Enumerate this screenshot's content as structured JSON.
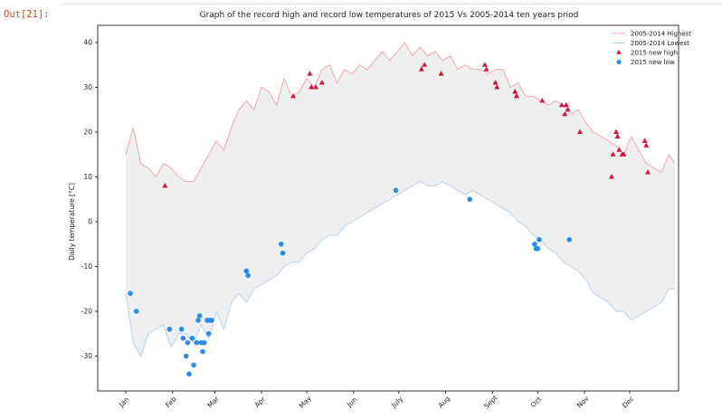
{
  "notebook": {
    "prompt": "Out[21]:"
  },
  "chart_data": {
    "type": "line",
    "title": "Graph of the record high and record low temperatures of 2015 Vs  2005-2014 ten years priod",
    "xlabel": "",
    "ylabel": "Daily temperature [°C]",
    "x_range": [
      1,
      365
    ],
    "ylim": [
      -38,
      44
    ],
    "yticks": [
      -30,
      -20,
      -10,
      0,
      10,
      20,
      30,
      40
    ],
    "month_ticks": [
      {
        "label": "Jan",
        "day": 1
      },
      {
        "label": "Feb",
        "day": 32
      },
      {
        "label": "Mar",
        "day": 60
      },
      {
        "label": "Apr",
        "day": 91
      },
      {
        "label": "May",
        "day": 121
      },
      {
        "label": "Jun",
        "day": 152
      },
      {
        "label": "July",
        "day": 182
      },
      {
        "label": "Aug",
        "day": 213
      },
      {
        "label": "Sept",
        "day": 244
      },
      {
        "label": "Oct",
        "day": 274
      },
      {
        "label": "Nov",
        "day": 305
      },
      {
        "label": "Dec",
        "day": 335
      }
    ],
    "grid": false,
    "legend_position": "top-right",
    "colors": {
      "high": "#f4a6a6",
      "low": "#b4d3f0",
      "fill": "#efefef",
      "new_high": "#d0143c",
      "new_low": "#2c8be6"
    },
    "series": [
      {
        "name": "2005-2014 Highest",
        "kind": "line",
        "x": [
          1,
          6,
          11,
          16,
          21,
          26,
          31,
          36,
          41,
          46,
          51,
          56,
          61,
          66,
          71,
          76,
          81,
          86,
          91,
          96,
          101,
          106,
          111,
          116,
          121,
          126,
          131,
          136,
          141,
          146,
          151,
          156,
          161,
          166,
          171,
          176,
          181,
          186,
          191,
          196,
          201,
          206,
          211,
          216,
          221,
          226,
          231,
          236,
          241,
          246,
          251,
          256,
          261,
          266,
          271,
          276,
          281,
          286,
          291,
          296,
          301,
          306,
          311,
          316,
          321,
          326,
          331,
          336,
          341,
          346,
          351,
          356,
          361,
          365
        ],
        "y": [
          15,
          21,
          13,
          12,
          10,
          13,
          12,
          10,
          9,
          9,
          12,
          15,
          18,
          16,
          21,
          25,
          27,
          25,
          30,
          29,
          26,
          32,
          28,
          29,
          32,
          30,
          34,
          35,
          31,
          34,
          33,
          35,
          34,
          36,
          38,
          36,
          38,
          40,
          37,
          39,
          37,
          38,
          36,
          37,
          34,
          35,
          34,
          34,
          33,
          34,
          34,
          30,
          31,
          28,
          28,
          27,
          26,
          27,
          26,
          24,
          25,
          22,
          20,
          19,
          18,
          17,
          15,
          19,
          16,
          13,
          12,
          11,
          15,
          13
        ]
      },
      {
        "name": "2005-2014 Lowest",
        "kind": "line",
        "x": [
          1,
          6,
          11,
          16,
          21,
          26,
          31,
          36,
          41,
          46,
          51,
          56,
          61,
          66,
          71,
          76,
          81,
          86,
          91,
          96,
          101,
          106,
          111,
          116,
          121,
          126,
          131,
          136,
          141,
          146,
          151,
          156,
          161,
          166,
          171,
          176,
          181,
          186,
          191,
          196,
          201,
          206,
          211,
          216,
          221,
          226,
          231,
          236,
          241,
          246,
          251,
          256,
          261,
          266,
          271,
          276,
          281,
          286,
          291,
          296,
          301,
          306,
          311,
          316,
          321,
          326,
          331,
          336,
          341,
          346,
          351,
          356,
          361,
          365
        ],
        "y": [
          -16,
          -27,
          -30,
          -25,
          -24,
          -23,
          -28,
          -25,
          -25,
          -27,
          -23,
          -26,
          -20,
          -24,
          -18,
          -16,
          -18,
          -15,
          -14,
          -13,
          -12,
          -10,
          -9,
          -9,
          -7,
          -6,
          -4,
          -3,
          -3,
          -1,
          0,
          1,
          2,
          3,
          4,
          5,
          6,
          7,
          8,
          9,
          8,
          8,
          9,
          8,
          7,
          6,
          7,
          6,
          5,
          4,
          3,
          2,
          0,
          -1,
          -3,
          -4,
          -6,
          -7,
          -9,
          -10,
          -11,
          -13,
          -16,
          -17,
          -18,
          -20,
          -20,
          -22,
          -21,
          -20,
          -19,
          -18,
          -15,
          -15
        ]
      },
      {
        "name": "2015 new high",
        "kind": "scatter",
        "marker": "triangle",
        "x": [
          27,
          112,
          123,
          124,
          127,
          131,
          197,
          199,
          210,
          239,
          240,
          246,
          247,
          259,
          260,
          277,
          290,
          292,
          293,
          294,
          302,
          323,
          324,
          326,
          327,
          328,
          330,
          331,
          345,
          346,
          347
        ],
        "y": [
          8,
          28,
          33,
          30,
          30,
          31,
          34,
          35,
          33,
          35,
          34,
          31,
          30,
          29,
          28,
          27,
          26,
          24,
          26,
          25,
          20,
          10,
          15,
          20,
          19,
          16,
          15,
          15,
          18,
          17,
          11
        ]
      },
      {
        "name": "2015 new low",
        "kind": "scatter",
        "marker": "circle",
        "x": [
          4,
          8,
          30,
          38,
          39,
          41,
          42,
          43,
          45,
          46,
          48,
          49,
          50,
          51,
          52,
          53,
          55,
          56,
          57,
          58,
          81,
          82,
          104,
          105,
          180,
          229,
          272,
          273,
          274,
          275,
          295
        ],
        "y": [
          -16,
          -20,
          -24,
          -24,
          -26,
          -30,
          -27,
          -34,
          -26,
          -32,
          -27,
          -22,
          -21,
          -27,
          -29,
          -27,
          -22,
          -25,
          -22,
          -22,
          -11,
          -12,
          -5,
          -7,
          7,
          5,
          -5,
          -6,
          -6,
          -4,
          -4
        ]
      }
    ]
  }
}
